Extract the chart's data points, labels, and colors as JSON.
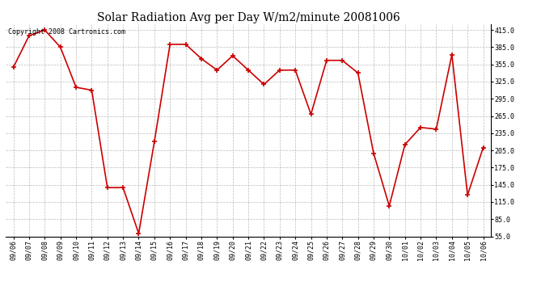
{
  "title": "Solar Radiation Avg per Day W/m2/minute 20081006",
  "copyright": "Copyright 2008 Cartronics.com",
  "dates": [
    "09/06",
    "09/07",
    "09/08",
    "09/09",
    "09/10",
    "09/11",
    "09/12",
    "09/13",
    "09/14",
    "09/15",
    "09/16",
    "09/17",
    "09/18",
    "09/19",
    "09/20",
    "09/21",
    "09/22",
    "09/23",
    "09/24",
    "09/25",
    "09/26",
    "09/27",
    "09/28",
    "09/29",
    "09/30",
    "10/01",
    "10/02",
    "10/03",
    "10/04",
    "10/05",
    "10/06"
  ],
  "values": [
    350,
    405,
    415,
    385,
    315,
    310,
    140,
    140,
    60,
    220,
    390,
    390,
    365,
    345,
    370,
    345,
    320,
    345,
    345,
    268,
    362,
    362,
    340,
    200,
    108,
    215,
    245,
    242,
    372,
    127,
    210
  ],
  "line_color": "#cc0000",
  "marker_color": "#cc0000",
  "bg_color": "#ffffff",
  "grid_color": "#aaaaaa",
  "ylim": [
    55,
    425
  ],
  "yticks": [
    55.0,
    85.0,
    115.0,
    145.0,
    175.0,
    205.0,
    235.0,
    265.0,
    295.0,
    325.0,
    355.0,
    385.0,
    415.0
  ],
  "title_fontsize": 10,
  "copyright_fontsize": 6,
  "tick_fontsize": 6,
  "ytick_fontsize": 6
}
